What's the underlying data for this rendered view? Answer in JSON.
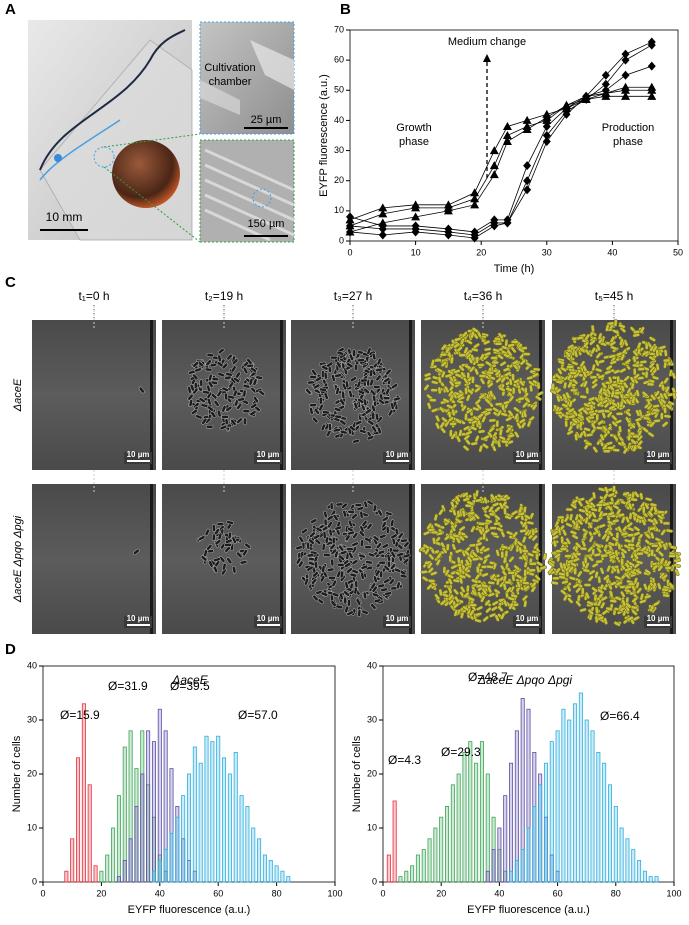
{
  "panel_labels": [
    "A",
    "B",
    "C",
    "D"
  ],
  "panel_a": {
    "photo_scale": "10 mm",
    "inset_top_label": [
      "Cultivation",
      "chamber"
    ],
    "inset_top_scale": "25 µm",
    "inset_bottom_scale": "150 µm"
  },
  "panel_c": {
    "times": [
      "t₁=0 h",
      "t₂=19 h",
      "t₃=27 h",
      "t₄=36 h",
      "t₅=45 h"
    ],
    "strains": [
      "ΔaceE",
      "ΔaceE Δpqo Δpgi"
    ],
    "scale_bars": [
      [
        "10 µm",
        "10 µm",
        "10 µm",
        "10 µm",
        "10 µm"
      ],
      [
        "10 µm",
        "10 µm",
        "10 µm",
        "10 µm",
        "10 µm"
      ]
    ]
  },
  "chart_data": [
    {
      "type": "line",
      "x_label": "Time (h)",
      "y_label": "EYFP fluorescence (a.u.)",
      "annotations": {
        "medium_change": "Medium change",
        "growth": [
          "Growth",
          "phase"
        ],
        "production": [
          "Production",
          "phase"
        ]
      },
      "x": [
        0,
        5,
        10,
        15,
        19,
        22,
        24,
        27,
        30,
        33,
        36,
        39,
        42,
        46
      ],
      "series": [
        {
          "color": "#000000",
          "marker": "triangle",
          "values": [
            7,
            11,
            12,
            12,
            16,
            30,
            38,
            40,
            42,
            44,
            47,
            49,
            50,
            50
          ]
        },
        {
          "color": "#000000",
          "marker": "triangle",
          "values": [
            5,
            9,
            11,
            11,
            14,
            25,
            35,
            38,
            40,
            45,
            48,
            49,
            51,
            51
          ]
        },
        {
          "color": "#000000",
          "marker": "triangle",
          "values": [
            3,
            6,
            8,
            10,
            12,
            22,
            33,
            37,
            41,
            45,
            47,
            48,
            48,
            48
          ]
        },
        {
          "color": "#000000",
          "marker": "diamond",
          "values": [
            8,
            5,
            5,
            4,
            3,
            7,
            7,
            25,
            38,
            44,
            48,
            55,
            62,
            66
          ]
        },
        {
          "color": "#000000",
          "marker": "diamond",
          "values": [
            5,
            4,
            4,
            3,
            2,
            6,
            6,
            20,
            35,
            43,
            47,
            52,
            60,
            65
          ]
        },
        {
          "color": "#000000",
          "marker": "diamond",
          "values": [
            3,
            2,
            3,
            2,
            1,
            5,
            6,
            17,
            33,
            42,
            48,
            50,
            55,
            58
          ]
        }
      ],
      "xlim": [
        0,
        50
      ],
      "xticks": [
        0,
        10,
        20,
        30,
        40,
        50
      ],
      "ylim": [
        0,
        70
      ],
      "yticks": [
        0,
        10,
        20,
        30,
        40,
        50,
        60,
        70
      ]
    },
    {
      "type": "bar",
      "title": "ΔaceE",
      "x_label": "EYFP fluorescence (a.u.)",
      "y_label": "Number of cells",
      "annotations": [
        "Ø=15.9",
        "Ø=31.9",
        "Ø=39.5",
        "Ø=57.0"
      ],
      "series": [
        {
          "color": "#e8303a",
          "x": [
            8,
            10,
            12,
            14,
            16,
            18
          ],
          "values": [
            2,
            8,
            23,
            33,
            18,
            3
          ]
        },
        {
          "color": "#3aa655",
          "x": [
            20,
            22,
            24,
            26,
            28,
            30,
            32,
            34,
            36,
            38,
            40,
            42
          ],
          "values": [
            2,
            5,
            10,
            16,
            25,
            28,
            21,
            28,
            18,
            12,
            5,
            2
          ]
        },
        {
          "color": "#5a4fa8",
          "x": [
            26,
            28,
            30,
            32,
            34,
            36,
            38,
            40,
            42,
            44,
            46,
            48,
            50,
            52
          ],
          "values": [
            1,
            4,
            8,
            14,
            20,
            28,
            26,
            32,
            28,
            21,
            14,
            8,
            4,
            2
          ]
        },
        {
          "color": "#2ab0e0",
          "x": [
            38,
            40,
            42,
            44,
            46,
            48,
            50,
            52,
            54,
            56,
            58,
            60,
            62,
            64,
            66,
            68,
            70,
            72,
            74,
            76,
            78,
            80,
            82,
            84
          ],
          "values": [
            2,
            4,
            6,
            9,
            12,
            16,
            20,
            25,
            22,
            27,
            26,
            27,
            23,
            20,
            24,
            16,
            14,
            10,
            8,
            5,
            4,
            3,
            2,
            1
          ]
        }
      ],
      "xlim": [
        0,
        100
      ],
      "xticks": [
        0,
        20,
        40,
        60,
        80,
        100
      ],
      "ylim": [
        0,
        40
      ],
      "yticks": [
        0,
        10,
        20,
        30,
        40
      ]
    },
    {
      "type": "bar",
      "title": "ΔaceE Δpqo Δpgi",
      "x_label": "EYFP fluorescence (a.u.)",
      "y_label": "Number of cells",
      "annotations": [
        "Ø=4.3",
        "Ø=29.3",
        "Ø=48.7",
        "Ø=66.4"
      ],
      "series": [
        {
          "color": "#e8303a",
          "x": [
            2,
            4
          ],
          "values": [
            5,
            15
          ]
        },
        {
          "color": "#3aa655",
          "x": [
            6,
            8,
            10,
            12,
            14,
            16,
            18,
            20,
            22,
            24,
            26,
            28,
            30,
            32,
            34,
            36,
            38,
            40,
            42
          ],
          "values": [
            1,
            2,
            3,
            5,
            6,
            8,
            10,
            12,
            14,
            18,
            20,
            24,
            26,
            22,
            26,
            20,
            12,
            6,
            2
          ]
        },
        {
          "color": "#5a4fa8",
          "x": [
            36,
            38,
            40,
            42,
            44,
            46,
            48,
            50,
            52,
            54,
            56,
            58,
            60
          ],
          "values": [
            2,
            6,
            10,
            16,
            22,
            28,
            34,
            32,
            24,
            20,
            12,
            5,
            2
          ]
        },
        {
          "color": "#2ab0e0",
          "x": [
            44,
            46,
            48,
            50,
            52,
            54,
            56,
            58,
            60,
            62,
            64,
            66,
            68,
            70,
            72,
            74,
            76,
            78,
            80,
            82,
            84,
            86,
            88,
            90,
            92,
            94
          ],
          "values": [
            2,
            4,
            6,
            10,
            14,
            18,
            22,
            26,
            28,
            32,
            30,
            33,
            35,
            30,
            28,
            24,
            22,
            18,
            14,
            10,
            8,
            6,
            4,
            2,
            1,
            1
          ]
        }
      ],
      "xlim": [
        0,
        100
      ],
      "xticks": [
        0,
        20,
        40,
        60,
        80,
        100
      ],
      "ylim": [
        0,
        40
      ],
      "yticks": [
        0,
        10,
        20,
        30,
        40
      ]
    }
  ]
}
